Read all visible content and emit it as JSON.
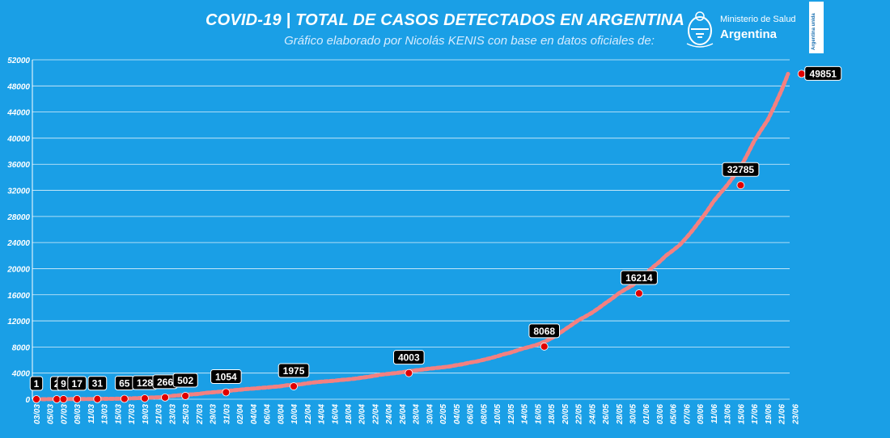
{
  "header": {
    "title": "COVID-19  |  TOTAL DE CASOS DETECTADOS EN ARGENTINA",
    "subtitle": "Gráfico elaborado por Nicolás KENIS con base en datos oficiales de:"
  },
  "logo": {
    "line1": "Ministerio de Salud",
    "line2": "Argentina"
  },
  "badge": {
    "text": "Argentina unida"
  },
  "colors": {
    "background": "#1a9fe6",
    "line": "#f48080",
    "marker": "#e00000",
    "grid": "#ffffff",
    "label_box": "#000000"
  },
  "chart_data": {
    "type": "line",
    "ylim": [
      0,
      52000
    ],
    "yticks": [
      0,
      4000,
      8000,
      12000,
      16000,
      20000,
      24000,
      28000,
      32000,
      36000,
      40000,
      44000,
      48000,
      52000
    ],
    "xlabels": [
      "03/03",
      "05/03",
      "07/03",
      "09/03",
      "11/03",
      "13/03",
      "15/03",
      "17/03",
      "19/03",
      "21/03",
      "23/03",
      "25/03",
      "27/03",
      "29/03",
      "31/03",
      "02/04",
      "04/04",
      "06/04",
      "08/04",
      "10/04",
      "12/04",
      "14/04",
      "16/04",
      "18/04",
      "20/04",
      "22/04",
      "24/04",
      "26/04",
      "28/04",
      "30/04",
      "02/05",
      "04/05",
      "06/05",
      "08/05",
      "10/05",
      "12/05",
      "14/05",
      "16/05",
      "18/05",
      "20/05",
      "22/05",
      "24/05",
      "26/05",
      "28/05",
      "30/05",
      "01/06",
      "03/06",
      "05/06",
      "07/06",
      "09/06",
      "11/06",
      "13/06",
      "15/06",
      "17/06",
      "19/06",
      "21/06",
      "23/06"
    ],
    "grid": true,
    "series": [
      {
        "values": [
          1,
          2,
          9,
          12,
          17,
          19,
          21,
          31,
          34,
          45,
          56,
          65,
          79,
          97,
          128,
          158,
          225,
          266,
          301,
          387,
          502,
          589,
          690,
          745,
          820,
          966,
          1054,
          1133,
          1265,
          1353,
          1451,
          1554,
          1628,
          1715,
          1795,
          1894,
          1975,
          2142,
          2208,
          2277,
          2443,
          2571,
          2669,
          2758,
          2839,
          2941,
          3031,
          3144,
          3288,
          3435,
          3607,
          3780,
          3892,
          4003,
          4127,
          4285,
          4428,
          4532,
          4681,
          4783,
          4887,
          5020,
          5208,
          5371,
          5611,
          5776,
          6034,
          6278,
          6563,
          6879,
          7134,
          7479,
          7805,
          8068,
          8371,
          8809,
          9283,
          9931,
          10649,
          11353,
          12076,
          12628,
          13228,
          13933,
          14702,
          15419,
          16214,
          16851,
          17415,
          18319,
          19268,
          20197,
          21037,
          22020,
          22794,
          23620,
          24761,
          25987,
          27373,
          28764,
          30295,
          31577,
          32785,
          34159,
          35552,
          37510,
          39570,
          41204,
          42785,
          44931,
          47203,
          49851
        ]
      }
    ],
    "labeled_points": [
      {
        "date": "03/03",
        "value": 1
      },
      {
        "date": "06/03",
        "value": 2
      },
      {
        "date": "07/03",
        "value": 9
      },
      {
        "date": "09/03",
        "value": 17
      },
      {
        "date": "12/03",
        "value": 31
      },
      {
        "date": "16/03",
        "value": 65
      },
      {
        "date": "19/03",
        "value": 128
      },
      {
        "date": "22/03",
        "value": 266
      },
      {
        "date": "25/03",
        "value": 502
      },
      {
        "date": "31/03",
        "value": 1054
      },
      {
        "date": "10/04",
        "value": 1975
      },
      {
        "date": "27/04",
        "value": 4003
      },
      {
        "date": "17/05",
        "value": 8068
      },
      {
        "date": "31/05",
        "value": 16214
      },
      {
        "date": "15/06",
        "value": 32785
      },
      {
        "date": "24/06",
        "value": 49851
      }
    ]
  }
}
